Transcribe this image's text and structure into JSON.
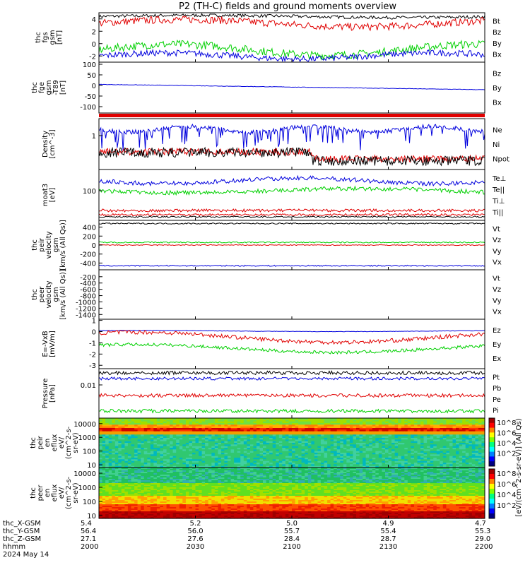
{
  "title": "P2 (TH-C) fields and ground moments overview",
  "colors": {
    "black": "#000000",
    "red": "#e00000",
    "green": "#00d000",
    "blue": "#0000dd"
  },
  "chart_data": [
    {
      "type": "line",
      "panel": "fgs",
      "ylabel_lines": [
        "thc",
        "fgs",
        "gsm",
        "[nT]"
      ],
      "ylim": [
        -3,
        5
      ],
      "yticks": [
        "4",
        "2",
        "0",
        "-2"
      ],
      "ytick_values": [
        4,
        2,
        0,
        -2
      ],
      "legend": [
        {
          "label": "Bt",
          "color": "black"
        },
        {
          "label": "Bz",
          "color": "red"
        },
        {
          "label": "By",
          "color": "green"
        },
        {
          "label": "Bx",
          "color": "blue"
        }
      ],
      "series": [
        {
          "name": "Bt",
          "color": "black",
          "level": 4.4
        },
        {
          "name": "Bz",
          "color": "red",
          "level": 3.3
        },
        {
          "name": "By",
          "color": "green",
          "level": -1.0
        },
        {
          "name": "Bx",
          "color": "blue",
          "level": -2.0
        }
      ]
    },
    {
      "type": "line",
      "panel": "fge",
      "ylabel_lines": [
        "thc",
        "fge",
        "gsm",
        "-T89",
        "[nT]"
      ],
      "ylim": [
        -130,
        110
      ],
      "yticks": [
        "100",
        "50",
        "0",
        "-50",
        "-100"
      ],
      "ytick_values": [
        100,
        50,
        0,
        -50,
        -100
      ],
      "legend": [
        {
          "label": "Bz",
          "color": "red"
        },
        {
          "label": "By",
          "color": "green"
        },
        {
          "label": "Bx",
          "color": "blue"
        }
      ],
      "series": [
        {
          "name": "Bx",
          "color": "blue",
          "start": 5,
          "end": -20
        }
      ]
    },
    {
      "type": "line",
      "panel": "density",
      "ylabel_lines": [
        "Density",
        "[cm^-3]"
      ],
      "scale": "log",
      "yticks": [
        "1"
      ],
      "ytick_values": [
        1
      ],
      "legend": [
        {
          "label": "Ne",
          "color": "red"
        },
        {
          "label": "Ni",
          "color": "black"
        },
        {
          "label": "Npot",
          "color": "blue"
        }
      ]
    },
    {
      "type": "line",
      "panel": "temperature",
      "ylabel_lines": [
        "moat3",
        "[eV]"
      ],
      "scale": "log",
      "yticks": [
        "100"
      ],
      "ytick_values": [
        100
      ],
      "legend": [
        {
          "label": "Te⊥",
          "color": "red"
        },
        {
          "label": "Te||",
          "color": "black"
        },
        {
          "label": "Ti⊥",
          "color": "blue"
        },
        {
          "label": "Ti||",
          "color": "green"
        }
      ]
    },
    {
      "type": "line",
      "panel": "ion_velocity",
      "ylabel_lines": [
        "thc",
        "peir",
        "velocity",
        "gsm",
        "[km/s (All Qs)]"
      ],
      "ylim": [
        -550,
        550
      ],
      "yticks": [
        "400",
        "200",
        "0",
        "-200",
        "-400"
      ],
      "ytick_values": [
        400,
        200,
        0,
        -200,
        -400
      ],
      "legend": [
        {
          "label": "Vt",
          "color": "black"
        },
        {
          "label": "Vz",
          "color": "red"
        },
        {
          "label": "Vy",
          "color": "green"
        },
        {
          "label": "Vx",
          "color": "blue"
        }
      ],
      "series": [
        {
          "name": "Vt",
          "color": "black",
          "level": 480
        },
        {
          "name": "Vz",
          "color": "red",
          "level": 0
        },
        {
          "name": "Vy",
          "color": "green",
          "level": 60
        },
        {
          "name": "Vx",
          "color": "blue",
          "level": -460
        }
      ]
    },
    {
      "type": "line",
      "panel": "electron_velocity",
      "ylabel_lines": [
        "thc",
        "peer",
        "velocity",
        "gsm",
        "[km/s (All Qs)]"
      ],
      "ylim": [
        -1550,
        20
      ],
      "yticks": [
        "-200",
        "-400",
        "-600",
        "-800",
        "-1000",
        "-1200",
        "-1400"
      ],
      "ytick_values": [
        -200,
        -400,
        -600,
        -800,
        -1000,
        -1200,
        -1400
      ],
      "legend": [
        {
          "label": "Vt",
          "color": "black"
        },
        {
          "label": "Vz",
          "color": "red"
        },
        {
          "label": "Vy",
          "color": "green"
        },
        {
          "label": "Vx",
          "color": "blue"
        }
      ]
    },
    {
      "type": "line",
      "panel": "efield",
      "ylabel_lines": [
        "E=-VxB",
        "[mV/m]"
      ],
      "ylim": [
        -3.3,
        1.1
      ],
      "yticks": [
        "1",
        "0",
        "-1",
        "-2",
        "-3"
      ],
      "ytick_values": [
        1,
        0,
        -1,
        -2,
        -3
      ],
      "legend": [
        {
          "label": "Ez",
          "color": "red"
        },
        {
          "label": "Ey",
          "color": "green"
        },
        {
          "label": "Ex",
          "color": "blue"
        }
      ],
      "series": [
        {
          "name": "Ex",
          "color": "blue",
          "level": 0.05
        },
        {
          "name": "Ey",
          "color": "green",
          "level": -1.5
        },
        {
          "name": "Ez",
          "color": "red",
          "level": -0.5
        }
      ]
    },
    {
      "type": "line",
      "panel": "pressure",
      "ylabel_lines": [
        "Pressure",
        "[nPa]"
      ],
      "scale": "log",
      "yticks": [
        "0.01"
      ],
      "ytick_values": [
        0.01
      ],
      "legend": [
        {
          "label": "Pt",
          "color": "black"
        },
        {
          "label": "Pb",
          "color": "blue"
        },
        {
          "label": "Pe",
          "color": "red"
        },
        {
          "label": "Pi",
          "color": "green"
        }
      ]
    },
    {
      "type": "heatmap",
      "panel": "ion_spectrogram",
      "ylabel_lines": [
        "thc",
        "peir",
        "en",
        "eflux",
        "eV/",
        "(cm^2-s-",
        "sr-eV)"
      ],
      "scale": "log",
      "yticks": [
        "10000",
        "1000",
        "100",
        "10"
      ],
      "ytick_values": [
        10000,
        1000,
        100,
        10
      ]
    },
    {
      "type": "heatmap",
      "panel": "electron_spectrogram",
      "ylabel_lines": [
        "thc",
        "peer",
        "en",
        "eflux",
        "eV/",
        "(cm^2-s-",
        "sr-eV)"
      ],
      "scale": "log",
      "yticks": [
        "10000",
        "1000",
        "100",
        "10"
      ],
      "ytick_values": [
        10000,
        1000,
        100,
        10
      ]
    }
  ],
  "colorbar": {
    "ticks_top": [
      "10^8",
      "10^6",
      "10^4",
      "10^2"
    ],
    "ticks_bottom": [
      "10^8",
      "10^6",
      "10^4",
      "10^2"
    ],
    "label": "[eV/(cm^2-s-sr-eV)] (All Qs)"
  },
  "bottom_axis": {
    "row_labels": [
      "thc_X-GSM",
      "thc_Y-GSM",
      "thc_Z-GSM",
      "hhmm",
      "2024 May 14"
    ],
    "columns": [
      {
        "x": "5.4",
        "y": "56.4",
        "z": "27.1",
        "t": "2000"
      },
      {
        "x": "5.2",
        "y": "56.0",
        "z": "27.6",
        "t": "2030"
      },
      {
        "x": "5.0",
        "y": "55.7",
        "z": "28.4",
        "t": "2100"
      },
      {
        "x": "4.9",
        "y": "55.4",
        "z": "28.7",
        "t": "2130"
      },
      {
        "x": "4.7",
        "y": "55.3",
        "z": "29.0",
        "t": "2200"
      }
    ]
  }
}
